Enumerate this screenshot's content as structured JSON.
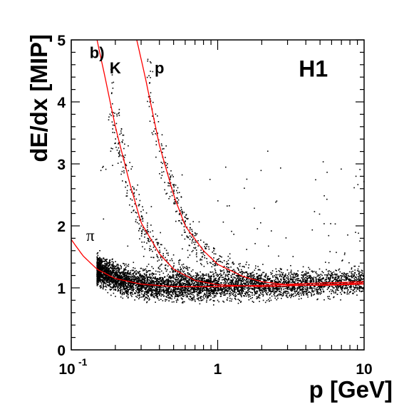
{
  "chart_data": {
    "type": "scatter",
    "xlabel": "p [GeV]",
    "ylabel": "dE/dx [MIP]",
    "xscale": "log",
    "xlim": [
      0.1,
      10
    ],
    "ylim": [
      0,
      5
    ],
    "x_ticks": [
      {
        "value": 0.1,
        "base": "10",
        "exp": "-1"
      },
      {
        "value": 1,
        "label": "1"
      },
      {
        "value": 10,
        "label": "10"
      }
    ],
    "y_ticks": [
      0,
      1,
      2,
      3,
      4,
      5
    ],
    "grid": false,
    "annotations": [
      {
        "text": "b)",
        "x": 0.15,
        "y": 4.8
      },
      {
        "text": "K",
        "x": 0.2,
        "y": 4.55
      },
      {
        "text": "p",
        "x": 0.4,
        "y": 4.55
      },
      {
        "text": "H1",
        "x": 4.5,
        "y": 4.5
      },
      {
        "text": "π",
        "x": 0.135,
        "y": 1.85
      }
    ],
    "series": [
      {
        "particle": "π",
        "kind": "band_fit",
        "curve": [
          [
            0.1,
            1.78
          ],
          [
            0.12,
            1.52
          ],
          [
            0.15,
            1.3
          ],
          [
            0.2,
            1.15
          ],
          [
            0.3,
            1.06
          ],
          [
            0.5,
            1.02
          ],
          [
            1,
            1.02
          ],
          [
            2,
            1.04
          ],
          [
            4,
            1.07
          ],
          [
            10,
            1.1
          ]
        ]
      },
      {
        "particle": "K",
        "kind": "band_fit",
        "curve": [
          [
            0.15,
            5.0
          ],
          [
            0.17,
            4.4
          ],
          [
            0.2,
            3.6
          ],
          [
            0.25,
            2.7
          ],
          [
            0.3,
            2.05
          ],
          [
            0.4,
            1.55
          ],
          [
            0.5,
            1.3
          ],
          [
            0.7,
            1.12
          ],
          [
            1,
            1.05
          ],
          [
            2,
            1.02
          ],
          [
            5,
            1.05
          ],
          [
            10,
            1.08
          ]
        ]
      },
      {
        "particle": "p",
        "kind": "band_fit",
        "curve": [
          [
            0.28,
            5.0
          ],
          [
            0.32,
            4.4
          ],
          [
            0.4,
            3.3
          ],
          [
            0.5,
            2.5
          ],
          [
            0.6,
            2.0
          ],
          [
            0.8,
            1.6
          ],
          [
            1,
            1.38
          ],
          [
            1.5,
            1.18
          ],
          [
            2,
            1.1
          ],
          [
            3,
            1.05
          ],
          [
            5,
            1.04
          ],
          [
            10,
            1.06
          ]
        ]
      },
      {
        "particle": "π",
        "kind": "band_points",
        "x_range": [
          0.15,
          10
        ],
        "y_center": 1.05,
        "y_spread": 0.3
      },
      {
        "particle": "K",
        "kind": "band_points",
        "x_range": [
          0.18,
          1.0
        ]
      },
      {
        "particle": "p",
        "kind": "band_points",
        "x_range": [
          0.33,
          2.0
        ]
      }
    ],
    "colors": {
      "curve": "#ff0000",
      "points": "#000000",
      "axis": "#000000"
    }
  }
}
